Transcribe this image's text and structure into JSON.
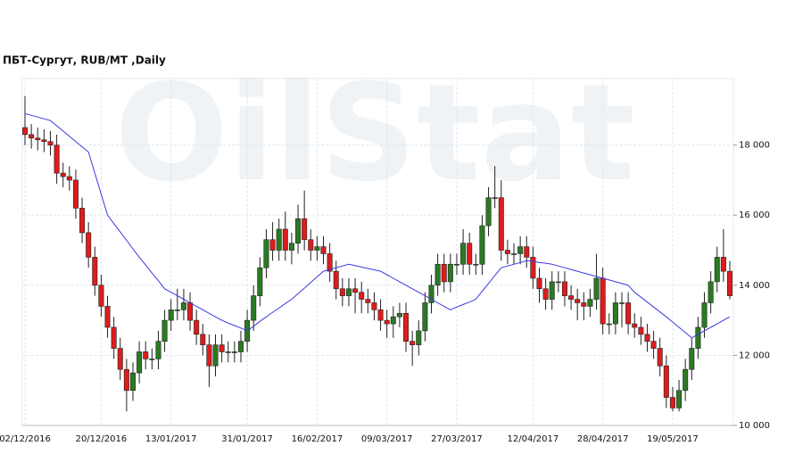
{
  "chart_data": {
    "type": "candlestick",
    "title": "ПБТ-Сургут,  RUB/MT ,Daily",
    "watermark": "OilStat",
    "categories": [
      "02/12/2016",
      null,
      null,
      null,
      null,
      null,
      null,
      null,
      null,
      null,
      null,
      null,
      "20/12/2016",
      null,
      null,
      null,
      null,
      null,
      null,
      null,
      null,
      null,
      null,
      "13/01/2017",
      null,
      null,
      null,
      null,
      null,
      null,
      null,
      null,
      null,
      null,
      null,
      "31/01/2017",
      null,
      null,
      null,
      null,
      null,
      null,
      null,
      null,
      null,
      null,
      "16/02/2017",
      null,
      null,
      null,
      null,
      null,
      null,
      null,
      null,
      null,
      null,
      "09/03/2017",
      null,
      null,
      null,
      null,
      null,
      null,
      null,
      null,
      null,
      null,
      "27/03/2017",
      null,
      null,
      null,
      null,
      null,
      null,
      null,
      null,
      null,
      null,
      null,
      "12/04/2017",
      null,
      null,
      null,
      null,
      null,
      null,
      null,
      null,
      null,
      null,
      "28/04/2017",
      null,
      null,
      null,
      null,
      null,
      null,
      null,
      null,
      null,
      null,
      "19/05/2017",
      null,
      null,
      null,
      null,
      null,
      null,
      null,
      null,
      null
    ],
    "open": [
      18500,
      18300,
      18200,
      18150,
      18100,
      18000,
      17200,
      17100,
      17000,
      16200,
      15500,
      14800,
      14000,
      13400,
      12800,
      12200,
      11600,
      11000,
      11500,
      12100,
      11900,
      11900,
      12400,
      13000,
      13300,
      13300,
      13500,
      13000,
      12600,
      12300,
      11700,
      12300,
      12100,
      12100,
      12100,
      12400,
      13000,
      13700,
      14500,
      15300,
      15000,
      15600,
      15000,
      15200,
      15900,
      15300,
      15000,
      15100,
      14900,
      14400,
      13900,
      13700,
      13900,
      13800,
      13600,
      13500,
      13300,
      13000,
      12900,
      13100,
      13200,
      12400,
      12300,
      12700,
      13500,
      14000,
      14600,
      14100,
      14600,
      14600,
      15200,
      14600,
      14600,
      15700,
      16500,
      16500,
      15000,
      14900,
      14900,
      15100,
      14800,
      14200,
      13900,
      13600,
      14100,
      14100,
      13700,
      13600,
      13500,
      13400,
      13600,
      14200,
      12900,
      12900,
      13500,
      13500,
      12900,
      12800,
      12600,
      12400,
      12200,
      11700,
      10800,
      10500,
      11000,
      11600,
      12200,
      12800,
      13500,
      14100,
      14800,
      14400
    ],
    "high": [
      19400,
      18600,
      18500,
      18450,
      18400,
      18300,
      17500,
      17400,
      17300,
      16500,
      15800,
      15100,
      14300,
      13700,
      13100,
      12500,
      11900,
      11800,
      12400,
      12400,
      12200,
      12700,
      13300,
      13600,
      13900,
      13900,
      13800,
      13300,
      12900,
      12600,
      12600,
      12600,
      12400,
      12400,
      12700,
      13300,
      14000,
      14800,
      15600,
      15800,
      15900,
      16100,
      15500,
      16300,
      16700,
      15600,
      15400,
      15400,
      15200,
      14700,
      14200,
      14200,
      14200,
      14100,
      13900,
      13800,
      13600,
      13300,
      13400,
      13500,
      13500,
      12700,
      13000,
      13800,
      14300,
      14900,
      14900,
      14900,
      14900,
      15600,
      15500,
      14900,
      16000,
      16800,
      17400,
      17000,
      15300,
      15200,
      15400,
      15400,
      15100,
      14500,
      14200,
      14400,
      14400,
      14400,
      14000,
      13900,
      13800,
      13900,
      14900,
      14500,
      13200,
      13800,
      13800,
      13800,
      13200,
      13100,
      12900,
      12700,
      12500,
      12000,
      11100,
      11300,
      11900,
      12500,
      13100,
      13800,
      14400,
      15100,
      15600,
      14700
    ],
    "low": [
      18000,
      17900,
      17850,
      17800,
      17700,
      16900,
      16800,
      16700,
      15900,
      15200,
      14500,
      13700,
      13100,
      12500,
      11900,
      11300,
      10400,
      10700,
      11200,
      11600,
      11600,
      11600,
      12100,
      12700,
      13000,
      13000,
      12700,
      12300,
      12000,
      11100,
      11400,
      11800,
      11800,
      11800,
      11800,
      12100,
      12700,
      13400,
      14200,
      14700,
      14700,
      14700,
      14600,
      14900,
      15000,
      14700,
      14700,
      14600,
      14100,
      13600,
      13400,
      13400,
      13200,
      13200,
      13200,
      13000,
      12700,
      12500,
      12500,
      12800,
      12100,
      11700,
      12000,
      12400,
      13200,
      13700,
      13800,
      13800,
      14300,
      14300,
      14300,
      14300,
      14300,
      15400,
      16200,
      14700,
      14600,
      14600,
      14600,
      14500,
      13900,
      13500,
      13300,
      13300,
      13800,
      13400,
      13300,
      13000,
      13000,
      13100,
      13300,
      12600,
      12600,
      12600,
      12800,
      12600,
      12500,
      12300,
      12100,
      11900,
      11400,
      10500,
      10400,
      10400,
      10700,
      11300,
      11900,
      12500,
      13200,
      13800,
      14100,
      13600
    ],
    "close": [
      18300,
      18200,
      18150,
      18100,
      18000,
      17200,
      17100,
      17000,
      16200,
      15500,
      14800,
      14000,
      13400,
      12800,
      12200,
      11600,
      11000,
      11500,
      12100,
      11900,
      11900,
      12400,
      13000,
      13300,
      13300,
      13500,
      13000,
      12600,
      12300,
      11700,
      12300,
      12100,
      12100,
      12100,
      12400,
      13000,
      13700,
      14500,
      15300,
      15000,
      15600,
      15000,
      15200,
      15900,
      15300,
      15000,
      15100,
      14900,
      14400,
      13900,
      13700,
      13900,
      13800,
      13600,
      13500,
      13300,
      13000,
      12900,
      13100,
      13200,
      12400,
      12300,
      12700,
      13500,
      14000,
      14600,
      14100,
      14600,
      14600,
      15200,
      14600,
      14600,
      15700,
      16500,
      16500,
      15000,
      14900,
      14900,
      15100,
      14800,
      14200,
      13900,
      13600,
      14100,
      14100,
      13700,
      13600,
      13500,
      13400,
      13600,
      14200,
      12900,
      12900,
      13500,
      13500,
      12900,
      12800,
      12600,
      12400,
      12200,
      11700,
      10800,
      10500,
      11000,
      11600,
      12200,
      12800,
      13500,
      14100,
      14800,
      14400,
      13700
    ],
    "ma": {
      "color": "#3a3ae0",
      "values": [
        18900,
        18850,
        18800,
        18750,
        18700,
        18550,
        18400,
        18250,
        18100,
        17950,
        17800,
        17200,
        16600,
        16000,
        15760,
        15520,
        15280,
        15040,
        14800,
        14580,
        14350,
        14130,
        13900,
        13800,
        13700,
        13600,
        13500,
        13400,
        13300,
        13200,
        13100,
        13000,
        12920,
        12850,
        12780,
        12700,
        12830,
        12970,
        13100,
        13230,
        13350,
        13480,
        13600,
        13760,
        13920,
        14080,
        14240,
        14400,
        14450,
        14500,
        14550,
        14600,
        14560,
        14520,
        14480,
        14440,
        14400,
        14300,
        14200,
        14100,
        14000,
        13900,
        13800,
        13700,
        13600,
        13500,
        13400,
        13300,
        13380,
        13450,
        13520,
        13600,
        13830,
        14050,
        14280,
        14500,
        14550,
        14600,
        14650,
        14700,
        14680,
        14650,
        14630,
        14600,
        14550,
        14500,
        14450,
        14400,
        14350,
        14300,
        14250,
        14200,
        14150,
        14100,
        14050,
        14000,
        13800,
        13660,
        13520,
        13380,
        13240,
        13100,
        12950,
        12800,
        12650,
        12500,
        12600,
        12700,
        12800,
        12900,
        13000,
        13100
      ]
    },
    "up_color": "#2b7a23",
    "down_color": "#e01b1b",
    "ylim": [
      10000,
      19900
    ],
    "yticks": [
      {
        "value": 10000,
        "label": "10 000"
      },
      {
        "value": 12000,
        "label": "12 000"
      },
      {
        "value": 14000,
        "label": "14 000"
      },
      {
        "value": 16000,
        "label": "16 000"
      },
      {
        "value": 18000,
        "label": "18 000"
      }
    ],
    "grid": true
  }
}
